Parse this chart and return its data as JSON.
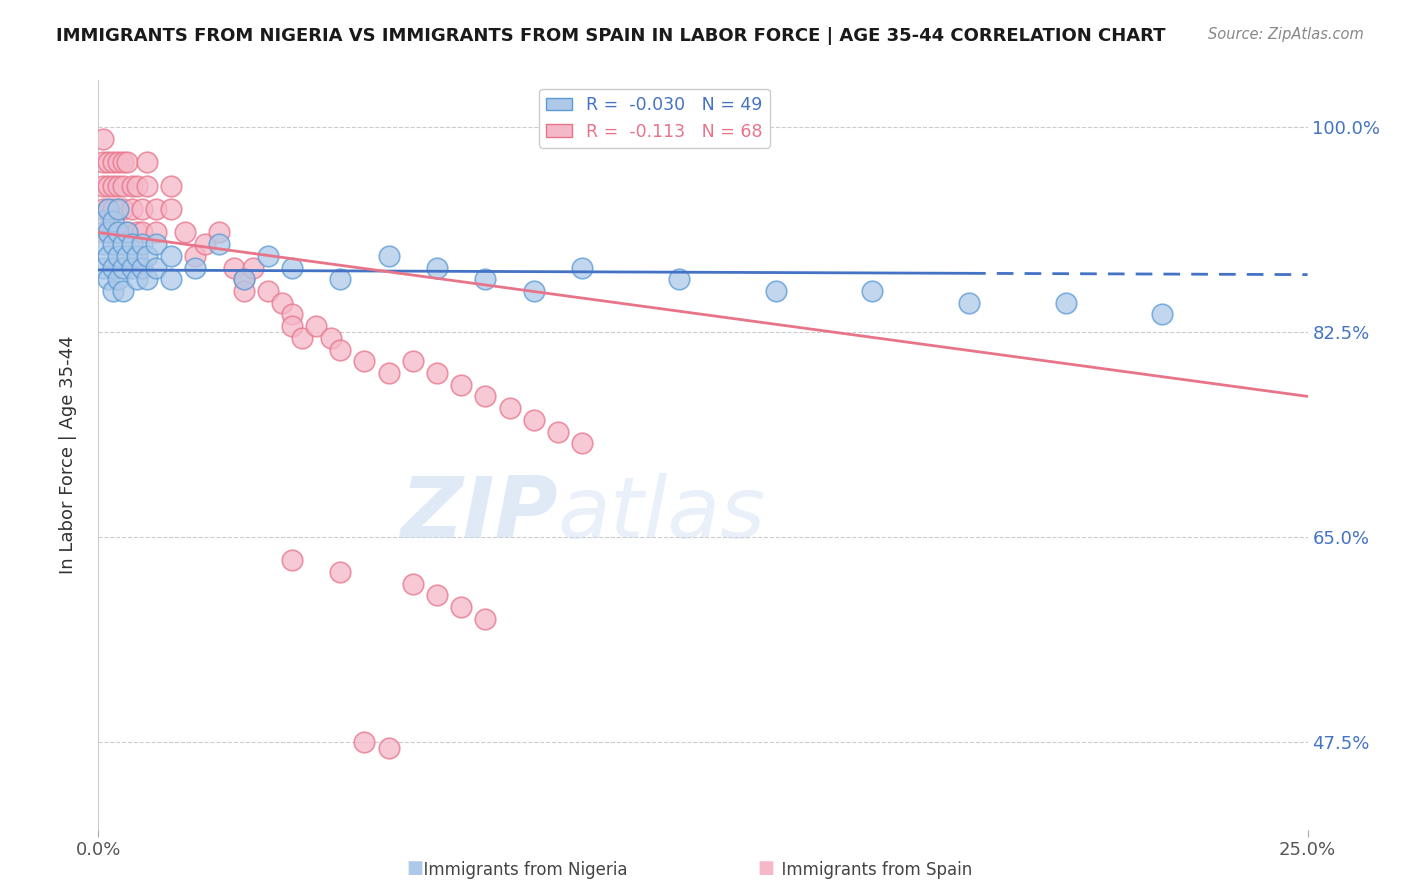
{
  "title": "IMMIGRANTS FROM NIGERIA VS IMMIGRANTS FROM SPAIN IN LABOR FORCE | AGE 35-44 CORRELATION CHART",
  "source": "Source: ZipAtlas.com",
  "ylabel_label": "In Labor Force | Age 35-44",
  "xlim": [
    0.0,
    0.25
  ],
  "ylim": [
    0.4,
    1.04
  ],
  "yticks": [
    0.475,
    0.65,
    0.825,
    1.0
  ],
  "ytick_labels": [
    "47.5%",
    "65.0%",
    "82.5%",
    "100.0%"
  ],
  "xticks": [
    0.0,
    0.25
  ],
  "xtick_labels": [
    "0.0%",
    "25.0%"
  ],
  "legend_nigeria": "Immigrants from Nigeria",
  "legend_spain": "Immigrants from Spain",
  "R_nigeria": -0.03,
  "N_nigeria": 49,
  "R_spain": -0.113,
  "N_spain": 68,
  "nigeria_fill_color": "#aec9e8",
  "spain_fill_color": "#f5b8c8",
  "nigeria_edge_color": "#5b9bd5",
  "spain_edge_color": "#e8748a",
  "nigeria_line_color": "#4472c4",
  "spain_line_color": "#e8748a",
  "nigeria_x": [
    0.001,
    0.001,
    0.001,
    0.002,
    0.002,
    0.002,
    0.002,
    0.003,
    0.003,
    0.003,
    0.003,
    0.004,
    0.004,
    0.004,
    0.004,
    0.005,
    0.005,
    0.005,
    0.006,
    0.006,
    0.007,
    0.007,
    0.008,
    0.008,
    0.009,
    0.009,
    0.01,
    0.01,
    0.012,
    0.012,
    0.015,
    0.015,
    0.02,
    0.025,
    0.03,
    0.035,
    0.04,
    0.05,
    0.06,
    0.07,
    0.08,
    0.09,
    0.1,
    0.12,
    0.14,
    0.16,
    0.18,
    0.2,
    0.22
  ],
  "nigeria_y": [
    0.88,
    0.9,
    0.92,
    0.87,
    0.89,
    0.91,
    0.93,
    0.86,
    0.88,
    0.9,
    0.92,
    0.87,
    0.89,
    0.91,
    0.93,
    0.86,
    0.88,
    0.9,
    0.89,
    0.91,
    0.88,
    0.9,
    0.87,
    0.89,
    0.88,
    0.9,
    0.87,
    0.89,
    0.88,
    0.9,
    0.87,
    0.89,
    0.88,
    0.9,
    0.87,
    0.89,
    0.88,
    0.87,
    0.89,
    0.88,
    0.87,
    0.86,
    0.88,
    0.87,
    0.86,
    0.86,
    0.85,
    0.85,
    0.84
  ],
  "spain_x": [
    0.001,
    0.001,
    0.001,
    0.001,
    0.001,
    0.002,
    0.002,
    0.002,
    0.002,
    0.003,
    0.003,
    0.003,
    0.003,
    0.004,
    0.004,
    0.004,
    0.004,
    0.005,
    0.005,
    0.005,
    0.006,
    0.006,
    0.007,
    0.007,
    0.008,
    0.008,
    0.009,
    0.009,
    0.01,
    0.01,
    0.012,
    0.012,
    0.015,
    0.015,
    0.018,
    0.02,
    0.022,
    0.025,
    0.028,
    0.03,
    0.03,
    0.032,
    0.035,
    0.038,
    0.04,
    0.04,
    0.042,
    0.045,
    0.048,
    0.05,
    0.055,
    0.06,
    0.065,
    0.07,
    0.075,
    0.08,
    0.085,
    0.09,
    0.095,
    0.1,
    0.055,
    0.06,
    0.04,
    0.05,
    0.065,
    0.07,
    0.075,
    0.08
  ],
  "spain_y": [
    0.97,
    0.95,
    0.93,
    0.91,
    0.99,
    0.95,
    0.93,
    0.97,
    0.91,
    0.97,
    0.95,
    0.93,
    0.91,
    0.97,
    0.95,
    0.93,
    0.91,
    0.97,
    0.95,
    0.93,
    0.97,
    0.91,
    0.95,
    0.93,
    0.91,
    0.95,
    0.93,
    0.91,
    0.97,
    0.95,
    0.93,
    0.91,
    0.95,
    0.93,
    0.91,
    0.89,
    0.9,
    0.91,
    0.88,
    0.87,
    0.86,
    0.88,
    0.86,
    0.85,
    0.84,
    0.83,
    0.82,
    0.83,
    0.82,
    0.81,
    0.8,
    0.79,
    0.8,
    0.79,
    0.78,
    0.77,
    0.76,
    0.75,
    0.74,
    0.73,
    0.475,
    0.47,
    0.63,
    0.62,
    0.61,
    0.6,
    0.59,
    0.58
  ],
  "nigeria_trend_x": [
    0.0,
    0.25
  ],
  "nigeria_trend_y": [
    0.878,
    0.874
  ],
  "spain_trend_x": [
    0.0,
    0.25
  ],
  "spain_trend_y": [
    0.91,
    0.77
  ],
  "watermark_text": "ZIPatlas",
  "background": "#ffffff"
}
